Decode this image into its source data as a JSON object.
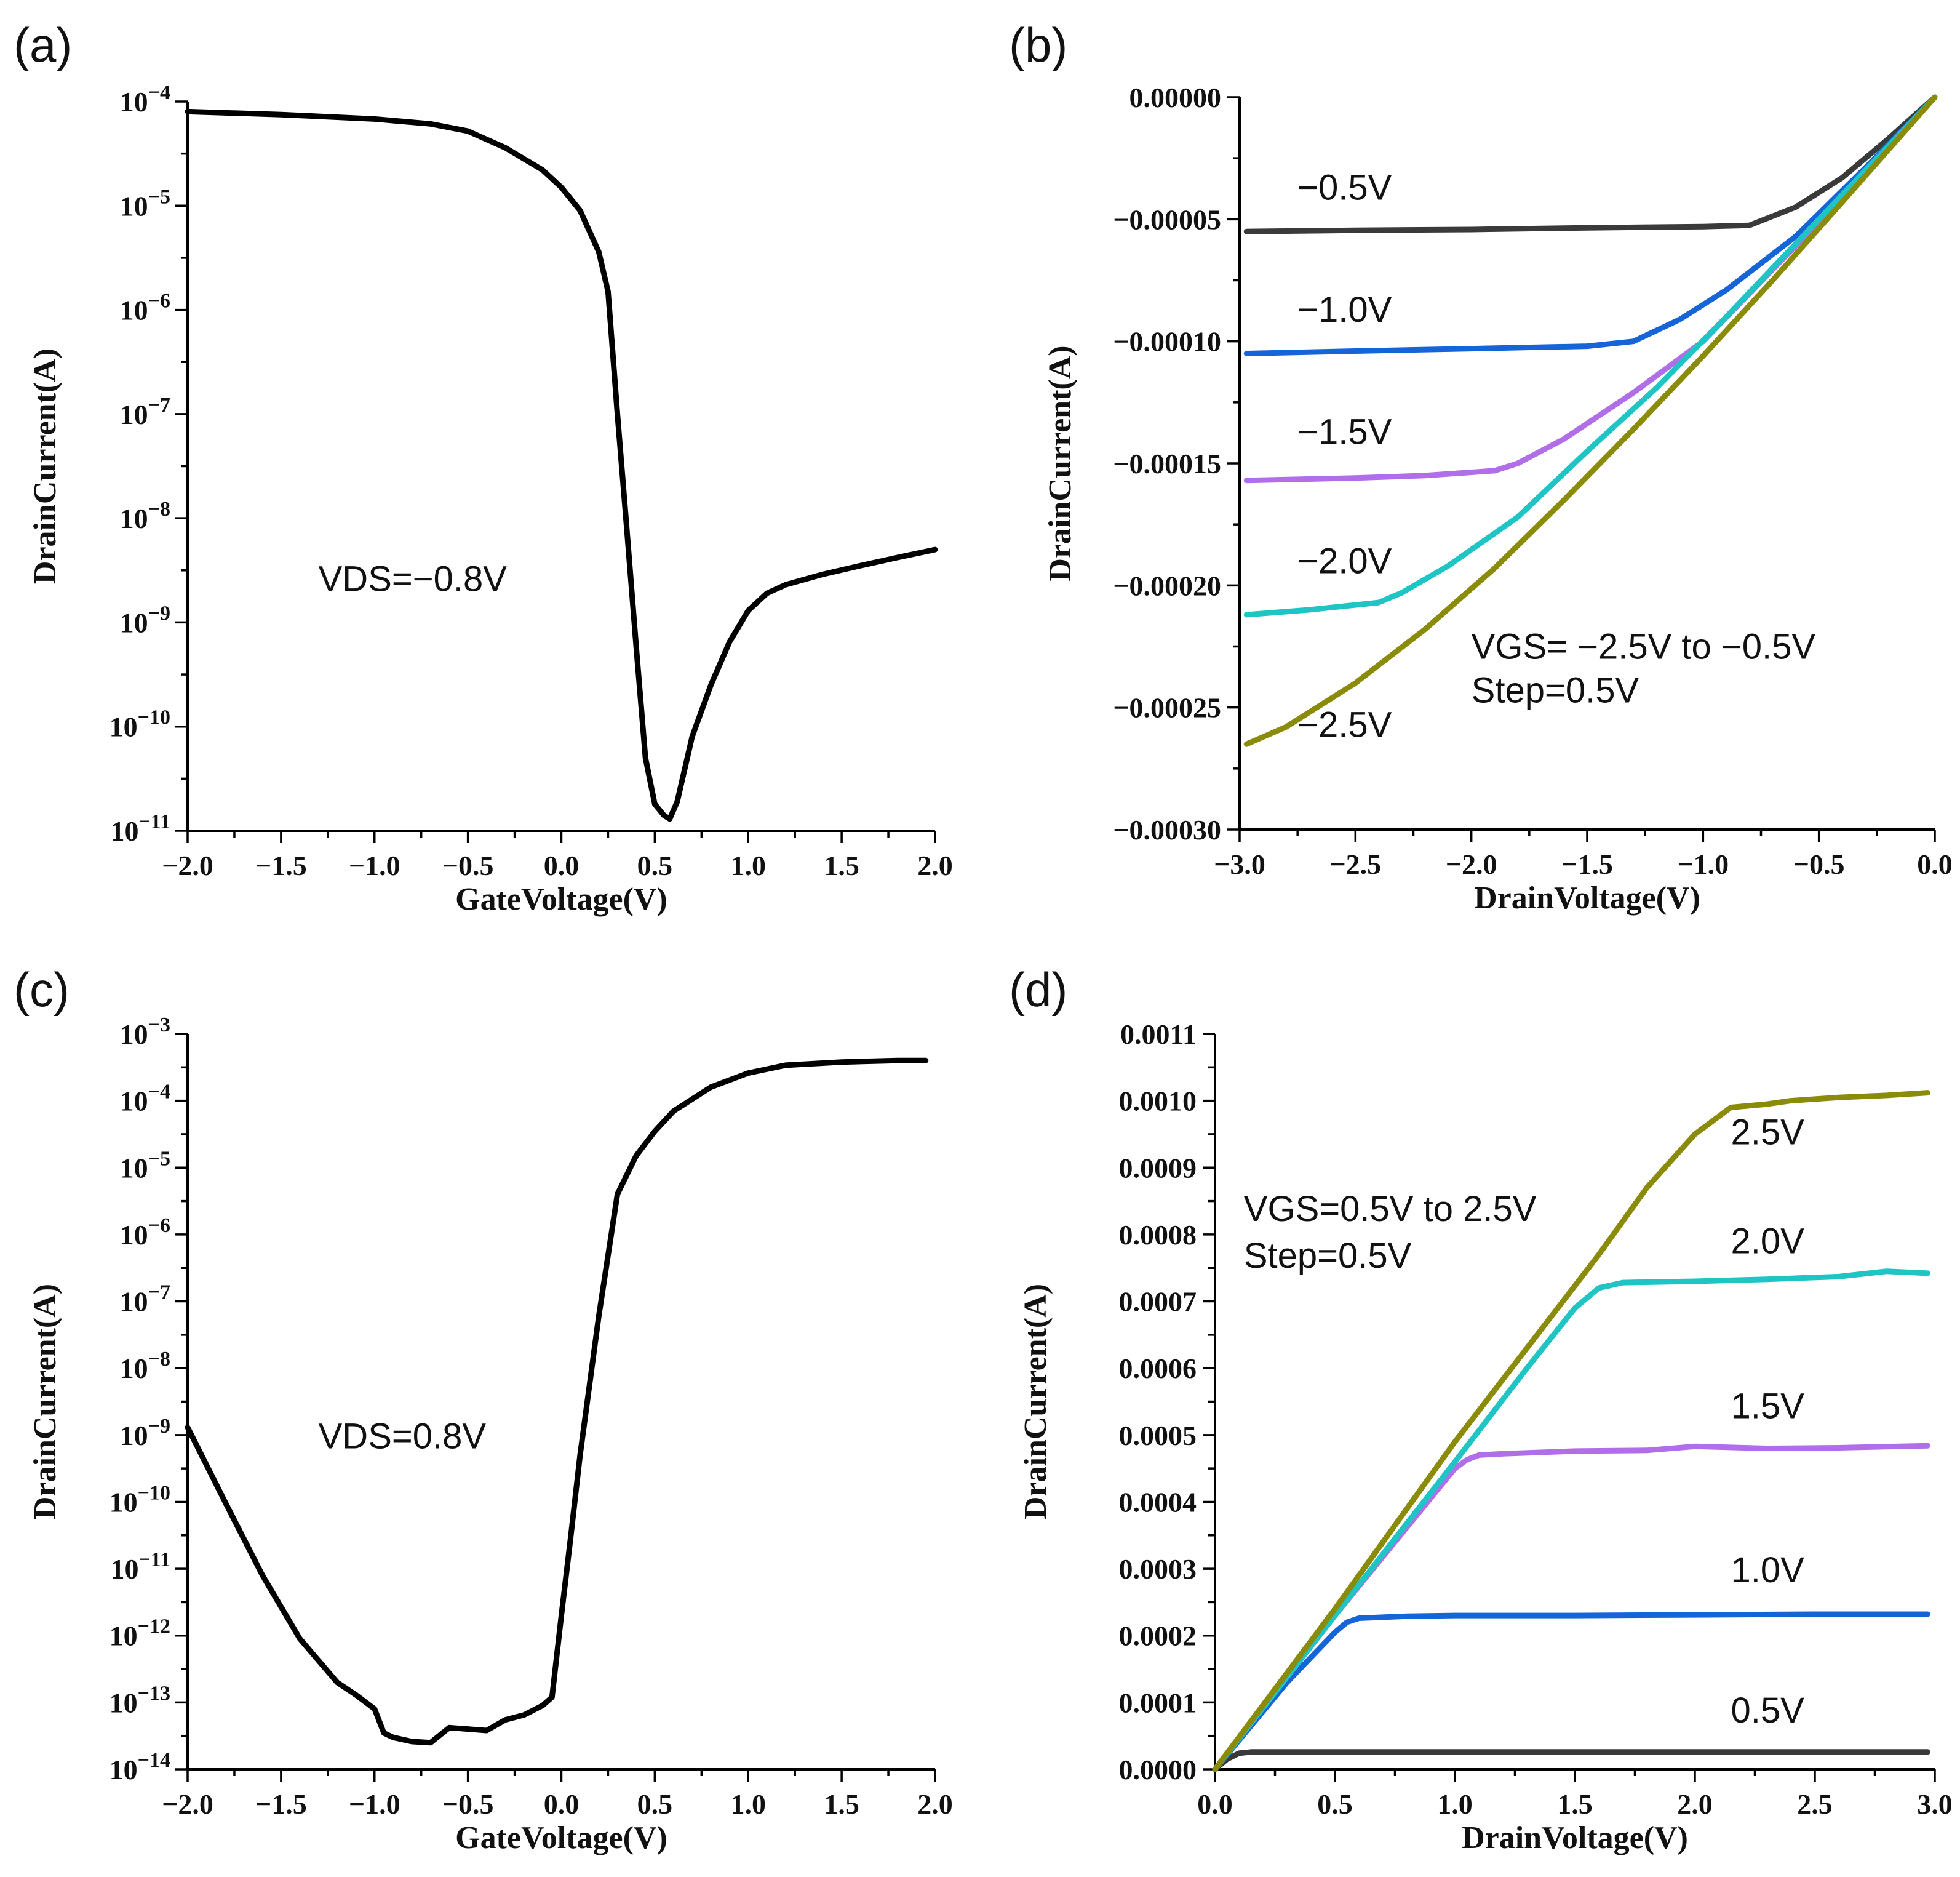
{
  "chart_data": [
    {
      "id": "a",
      "panel_label": "(a)",
      "type": "line",
      "yscale": "log",
      "xlabel": "GateVoltage(V)",
      "ylabel": "DrainCurrent(A)",
      "xlim": [
        -2.0,
        2.0
      ],
      "ylim_exp": [
        -11,
        -4
      ],
      "xticks": [
        -2.0,
        -1.5,
        -1.0,
        -0.5,
        0.0,
        0.5,
        1.0,
        1.5,
        2.0
      ],
      "xtick_labels": [
        "−2.0",
        "−1.5",
        "−1.0",
        "−0.5",
        "0.0",
        "0.5",
        "1.0",
        "1.5",
        "2.0"
      ],
      "yticks_exp": [
        -4,
        -5,
        -6,
        -7,
        -8,
        -9,
        -10,
        -11
      ],
      "ytick_labels": [
        {
          "base": "10",
          "exp": "−4"
        },
        {
          "base": "10",
          "exp": "−5"
        },
        {
          "base": "10",
          "exp": "−6"
        },
        {
          "base": "10",
          "exp": "−7"
        },
        {
          "base": "10",
          "exp": "−8"
        },
        {
          "base": "10",
          "exp": "−9"
        },
        {
          "base": "10",
          "exp": "−10"
        },
        {
          "base": "10",
          "exp": "−11"
        }
      ],
      "annotations": [
        {
          "text": "VDS=−0.8V",
          "x": -1.3,
          "y": -8.7
        }
      ],
      "series": [
        {
          "name": "VDS=-0.8V",
          "color": "#000000",
          "x": [
            -2.0,
            -1.5,
            -1.0,
            -0.7,
            -0.5,
            -0.3,
            -0.1,
            0.0,
            0.1,
            0.2,
            0.25,
            0.3,
            0.35,
            0.4,
            0.45,
            0.5,
            0.55,
            0.58,
            0.62,
            0.7,
            0.8,
            0.9,
            1.0,
            1.1,
            1.2,
            1.4,
            1.6,
            1.8,
            2.0
          ],
          "y": [
            8e-05,
            7.5e-05,
            6.8e-05,
            6.1e-05,
            5.2e-05,
            3.6e-05,
            2.2e-05,
            1.5e-05,
            9e-06,
            3.6e-06,
            1.5e-06,
            1e-07,
            8e-09,
            6e-10,
            5e-11,
            1.8e-11,
            1.4e-11,
            1.3e-11,
            1.9e-11,
            8e-11,
            2.5e-10,
            6.5e-10,
            1.3e-09,
            1.9e-09,
            2.3e-09,
            2.9e-09,
            3.5e-09,
            4.2e-09,
            5e-09
          ]
        }
      ]
    },
    {
      "id": "b",
      "panel_label": "(b)",
      "type": "line",
      "yscale": "linear",
      "xlabel": "DrainVoltage(V)",
      "ylabel": "DrainCurrent(A)",
      "xlim": [
        -3.0,
        0.0
      ],
      "ylim": [
        -0.0003,
        0.0
      ],
      "xticks": [
        -3.0,
        -2.5,
        -2.0,
        -1.5,
        -1.0,
        -0.5,
        0.0
      ],
      "xtick_labels": [
        "−3.0",
        "−2.5",
        "−2.0",
        "−1.5",
        "−1.0",
        "−0.5",
        "0.0"
      ],
      "yticks": [
        0.0,
        -5e-05,
        -0.0001,
        -0.00015,
        -0.0002,
        -0.00025,
        -0.0003
      ],
      "ytick_labels": [
        "0.00000",
        "−0.00005",
        "−0.00010",
        "−0.00015",
        "−0.00020",
        "−0.00025",
        "−0.00030"
      ],
      "annotations": [
        {
          "text": "VGS= −2.5V to −0.5V",
          "x": -2.0,
          "y": -0.00023
        },
        {
          "text": "Step=0.5V",
          "x": -2.0,
          "y": -0.000248
        }
      ],
      "series": [
        {
          "name": "-0.5V",
          "label": "−0.5V",
          "color": "#3a3a3a",
          "label_x": -2.75,
          "label_y": -4.2e-05,
          "x": [
            -2.97,
            -2.5,
            -2.0,
            -1.5,
            -1.0,
            -0.8,
            -0.6,
            -0.4,
            -0.2,
            0.0
          ],
          "y": [
            -5.5e-05,
            -5.45e-05,
            -5.42e-05,
            -5.35e-05,
            -5.3e-05,
            -5.25e-05,
            -4.5e-05,
            -3.3e-05,
            -1.7e-05,
            0.0
          ]
        },
        {
          "name": "-1.0V",
          "label": "−1.0V",
          "color": "#1565d8",
          "label_x": -2.75,
          "label_y": -9.2e-05,
          "x": [
            -2.97,
            -2.5,
            -2.0,
            -1.5,
            -1.3,
            -1.1,
            -0.9,
            -0.6,
            -0.3,
            0.0
          ],
          "y": [
            -0.000105,
            -0.000104,
            -0.000103,
            -0.000102,
            -0.0001,
            -9.1e-05,
            -7.9e-05,
            -5.7e-05,
            -2.9e-05,
            0.0
          ]
        },
        {
          "name": "-1.5V",
          "label": "−1.5V",
          "color": "#b06ee8",
          "label_x": -2.75,
          "label_y": -0.000142,
          "x": [
            -2.97,
            -2.5,
            -2.2,
            -1.9,
            -1.8,
            -1.6,
            -1.3,
            -1.0,
            -0.5,
            0.0
          ],
          "y": [
            -0.000157,
            -0.000156,
            -0.000155,
            -0.000153,
            -0.00015,
            -0.00014,
            -0.000121,
            -0.0001,
            -5.1e-05,
            0.0
          ]
        },
        {
          "name": "-2.0V",
          "label": "−2.0V",
          "color": "#1fc4c4",
          "label_x": -2.75,
          "label_y": -0.000195,
          "x": [
            -2.97,
            -2.7,
            -2.4,
            -2.3,
            -2.1,
            -1.8,
            -1.5,
            -1.2,
            -0.9,
            -0.5,
            0.0
          ],
          "y": [
            -0.000212,
            -0.00021,
            -0.000207,
            -0.000203,
            -0.000192,
            -0.000172,
            -0.000145,
            -0.000119,
            -9e-05,
            -5e-05,
            0.0
          ]
        },
        {
          "name": "-2.5V",
          "label": "−2.5V",
          "color": "#8b8b0a",
          "label_x": -2.75,
          "label_y": -0.000262,
          "x": [
            -2.97,
            -2.8,
            -2.5,
            -2.2,
            -1.9,
            -1.6,
            -1.3,
            -1.0,
            -0.7,
            -0.4,
            0.0
          ],
          "y": [
            -0.000265,
            -0.000258,
            -0.00024,
            -0.000218,
            -0.000193,
            -0.000165,
            -0.000136,
            -0.000106,
            -7.5e-05,
            -4.3e-05,
            0.0
          ]
        }
      ]
    },
    {
      "id": "c",
      "panel_label": "(c)",
      "type": "line",
      "yscale": "log",
      "xlabel": "GateVoltage(V)",
      "ylabel": "DrainCurrent(A)",
      "xlim": [
        -2.0,
        2.0
      ],
      "ylim_exp": [
        -14,
        -3
      ],
      "xticks": [
        -2.0,
        -1.5,
        -1.0,
        -0.5,
        0.0,
        0.5,
        1.0,
        1.5,
        2.0
      ],
      "xtick_labels": [
        "−2.0",
        "−1.5",
        "−1.0",
        "−0.5",
        "0.0",
        "0.5",
        "1.0",
        "1.5",
        "2.0"
      ],
      "yticks_exp": [
        -3,
        -4,
        -5,
        -6,
        -7,
        -8,
        -9,
        -10,
        -11,
        -12,
        -13,
        -14
      ],
      "ytick_labels": [
        {
          "base": "10",
          "exp": "−3"
        },
        {
          "base": "10",
          "exp": "−4"
        },
        {
          "base": "10",
          "exp": "−5"
        },
        {
          "base": "10",
          "exp": "−6"
        },
        {
          "base": "10",
          "exp": "−7"
        },
        {
          "base": "10",
          "exp": "−8"
        },
        {
          "base": "10",
          "exp": "−9"
        },
        {
          "base": "10",
          "exp": "−10"
        },
        {
          "base": "10",
          "exp": "−11"
        },
        {
          "base": "10",
          "exp": "−12"
        },
        {
          "base": "10",
          "exp": "−13"
        },
        {
          "base": "10",
          "exp": "−14"
        }
      ],
      "annotations": [
        {
          "text": "VDS=0.8V",
          "x": -1.3,
          "y": -9.2
        }
      ],
      "series": [
        {
          "name": "VDS=0.8V",
          "color": "#000000",
          "x": [
            -2.0,
            -1.8,
            -1.6,
            -1.4,
            -1.2,
            -1.1,
            -1.0,
            -0.95,
            -0.9,
            -0.8,
            -0.7,
            -0.6,
            -0.5,
            -0.4,
            -0.3,
            -0.2,
            -0.1,
            -0.05,
            0.0,
            0.05,
            0.1,
            0.2,
            0.3,
            0.4,
            0.5,
            0.6,
            0.8,
            1.0,
            1.2,
            1.5,
            1.8,
            1.95
          ],
          "y": [
            1.3e-09,
            1e-10,
            8e-12,
            9e-13,
            2e-13,
            1.3e-13,
            8e-14,
            3.5e-14,
            3e-14,
            2.6e-14,
            2.5e-14,
            4.2e-14,
            4e-14,
            3.8e-14,
            5.5e-14,
            6.5e-14,
            9e-14,
            1.2e-13,
            2e-12,
            3e-11,
            5e-10,
            6e-08,
            4e-06,
            1.5e-05,
            3.5e-05,
            7e-05,
            0.00016,
            0.00026,
            0.00034,
            0.00038,
            0.0004,
            0.0004
          ]
        }
      ]
    },
    {
      "id": "d",
      "panel_label": "(d)",
      "type": "line",
      "yscale": "linear",
      "xlabel": "DrainVoltage(V)",
      "ylabel": "DrainCurrent(A)",
      "xlim": [
        0.0,
        3.0
      ],
      "ylim": [
        0.0,
        0.0011
      ],
      "xticks": [
        0.0,
        0.5,
        1.0,
        1.5,
        2.0,
        2.5,
        3.0
      ],
      "xtick_labels": [
        "0.0",
        "0.5",
        "1.0",
        "1.5",
        "2.0",
        "2.5",
        "3.0"
      ],
      "yticks": [
        0.0,
        0.0001,
        0.0002,
        0.0003,
        0.0004,
        0.0005,
        0.0006,
        0.0007,
        0.0008,
        0.0009,
        0.001,
        0.0011
      ],
      "ytick_labels": [
        "0.0000",
        "0.0001",
        "0.0002",
        "0.0003",
        "0.0004",
        "0.0005",
        "0.0006",
        "0.0007",
        "0.0008",
        "0.0009",
        "0.0010",
        "0.0011"
      ],
      "annotations": [
        {
          "text": "VGS=0.5V to 2.5V",
          "x": 0.12,
          "y": 0.00082
        },
        {
          "text": "Step=0.5V",
          "x": 0.12,
          "y": 0.00075
        }
      ],
      "series": [
        {
          "name": "0.5V",
          "label": "0.5V",
          "color": "#3a3a3a",
          "label_x": 2.15,
          "label_y": 7e-05,
          "x": [
            0.0,
            0.05,
            0.1,
            0.15,
            0.3,
            1.0,
            2.0,
            2.97
          ],
          "y": [
            0.0,
            1.5e-05,
            2.4e-05,
            2.6e-05,
            2.6e-05,
            2.6e-05,
            2.6e-05,
            2.6e-05
          ]
        },
        {
          "name": "1.0V",
          "label": "1.0V",
          "color": "#1565d8",
          "label_x": 2.15,
          "label_y": 0.00028,
          "x": [
            0.0,
            0.3,
            0.5,
            0.55,
            0.6,
            0.8,
            1.0,
            1.5,
            2.0,
            2.5,
            2.97
          ],
          "y": [
            0.0,
            0.00013,
            0.000205,
            0.00022,
            0.000226,
            0.000229,
            0.00023,
            0.00023,
            0.000231,
            0.000232,
            0.000232
          ]
        },
        {
          "name": "1.5V",
          "label": "1.5V",
          "color": "#b06ee8",
          "label_x": 2.15,
          "label_y": 0.000525,
          "x": [
            0.0,
            0.5,
            1.0,
            1.05,
            1.1,
            1.2,
            1.5,
            1.8,
            2.0,
            2.3,
            2.6,
            2.97
          ],
          "y": [
            0.0,
            0.00023,
            0.00045,
            0.000463,
            0.00047,
            0.000472,
            0.000476,
            0.000477,
            0.000483,
            0.00048,
            0.000481,
            0.000484
          ]
        },
        {
          "name": "2.0V",
          "label": "2.0V",
          "color": "#1fc4c4",
          "label_x": 2.15,
          "label_y": 0.000772,
          "x": [
            0.0,
            0.5,
            1.0,
            1.3,
            1.5,
            1.6,
            1.7,
            2.0,
            2.3,
            2.6,
            2.8,
            2.97
          ],
          "y": [
            0.0,
            0.00023,
            0.00046,
            0.0006,
            0.00069,
            0.00072,
            0.000728,
            0.00073,
            0.000733,
            0.000737,
            0.000745,
            0.000742
          ]
        },
        {
          "name": "2.5V",
          "label": "2.5V",
          "color": "#8b8b0a",
          "label_x": 2.15,
          "label_y": 0.000935,
          "x": [
            0.0,
            0.5,
            1.0,
            1.3,
            1.6,
            1.8,
            2.0,
            2.15,
            2.3,
            2.4,
            2.6,
            2.8,
            2.97
          ],
          "y": [
            0.0,
            0.00024,
            0.00049,
            0.00063,
            0.00077,
            0.00087,
            0.00095,
            0.00099,
            0.000995,
            0.001,
            0.001005,
            0.001008,
            0.001012
          ]
        }
      ]
    }
  ]
}
